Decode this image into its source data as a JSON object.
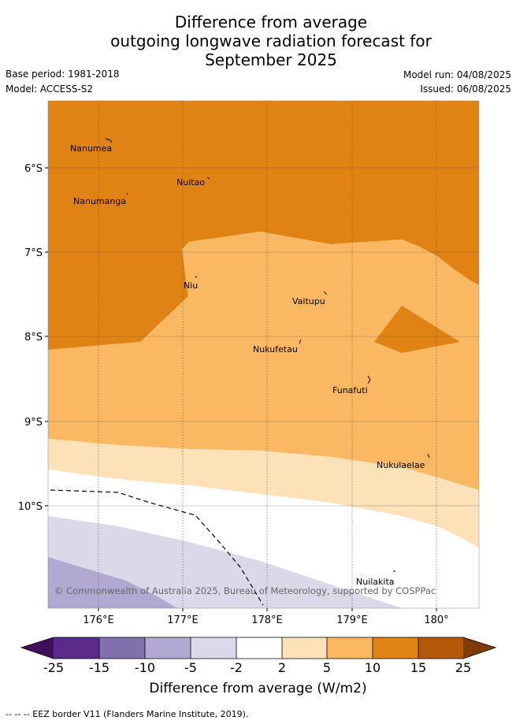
{
  "title_lines": [
    "Difference from average",
    "outgoing longwave radiation forecast for",
    "September 2025"
  ],
  "base_period": "Base period: 1981-2018",
  "model": "Model: ACCESS-S2",
  "model_run": "Model run: 04/08/2025",
  "issued": "Issued: 06/08/2025",
  "lat_labels": [
    "6°S",
    "7°S",
    "8°S",
    "9°S",
    "10°S"
  ],
  "lon_labels": [
    "176°E",
    "177°E",
    "178°E",
    "179°E",
    "180°"
  ],
  "places": [
    "Nanumea",
    "Nuitao",
    "Nanumanga",
    "Niu",
    "Vaitupu",
    "Nukufetau",
    "Funafuti",
    "Nukulaelae",
    "Nuilakita"
  ],
  "copyright": "© Commonwealth of Australia 2025, Bureau of Meteorology, supported by COSPPac",
  "colorbar": {
    "ticks": [
      "-25",
      "-15",
      "-10",
      "-5",
      "-2",
      "2",
      "5",
      "10",
      "15",
      "25"
    ],
    "colors": [
      "#5b2a8a",
      "#8071ad",
      "#b2a9d2",
      "#d9d9ea",
      "#ffffff",
      "#fde1b8",
      "#fbb862",
      "#e08214",
      "#b35806"
    ],
    "under_color": "#3f0f5e",
    "over_color": "#7f3b08",
    "label": "Difference from average (W/m2)"
  },
  "legend_note": "-- -- -- EEZ border V11 (Flanders Marine Institute, 2019)."
}
